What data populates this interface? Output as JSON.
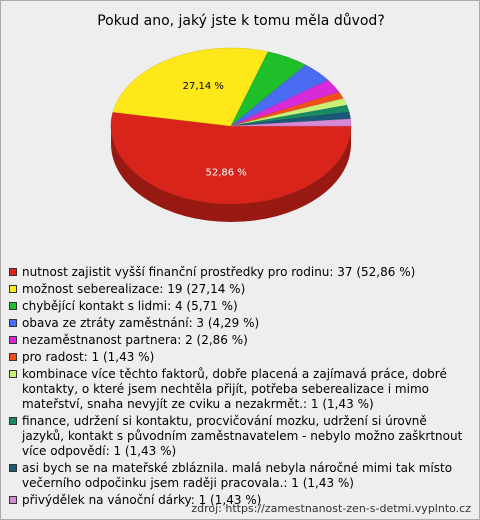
{
  "chart_data": {
    "type": "pie",
    "title": "Pokud ano, jaký jste k tomu měla důvod?",
    "categories": [
      "nutnost zajistit vyšší finanční prostředky pro rodinu: 37 (52,86 %)",
      "možnost seberealizace: 19 (27,14 %)",
      "chybějící kontakt s lidmi: 4 (5,71 %)",
      "obava ze ztráty zaměstnání: 3 (4,29 %)",
      "nezaměstnanost partnera: 2 (2,86 %)",
      "pro radost: 1 (1,43 %)",
      "kombinace více těchto faktorů, dobře placená a zajímavá práce, dobré kontakty, o které jsem nechtěla přijít, potřeba seberealizace i mimo mateřství, snaha nevyjít ze cviku a nezakrmět.: 1 (1,43 %)",
      "finance, udržení si kontaktu, procvičování mozku, udržení si úrovně jazyků, kontakt s původním zaměstnavatelem - nebylo možno zaškrtnout více odpovědí: 1 (1,43 %)",
      "asi bych se na mateřské zbláznila.  malá nebyla náročné mimi tak místo večerního odpočinku jsem raději pracovala.: 1 (1,43 %)",
      "přivýdělek na vánoční dárky: 1 (1,43 %)"
    ],
    "values": [
      52.86,
      27.14,
      5.71,
      4.29,
      2.86,
      1.43,
      1.43,
      1.43,
      1.43,
      1.43
    ],
    "value_labels": [
      "52,86 %",
      "27,14 %",
      null,
      null,
      null,
      null,
      null,
      null,
      null,
      null
    ],
    "colors": [
      "#d8241a",
      "#ffe81a",
      "#1fbf2a",
      "#4a6cf2",
      "#d82ad8",
      "#f0501a",
      "#c8f078",
      "#1a8a66",
      "#1a5878",
      "#d88ad8"
    ],
    "source": "zdroj: https://zamestnanost-zen-s-detmi.vyplnto.cz"
  }
}
